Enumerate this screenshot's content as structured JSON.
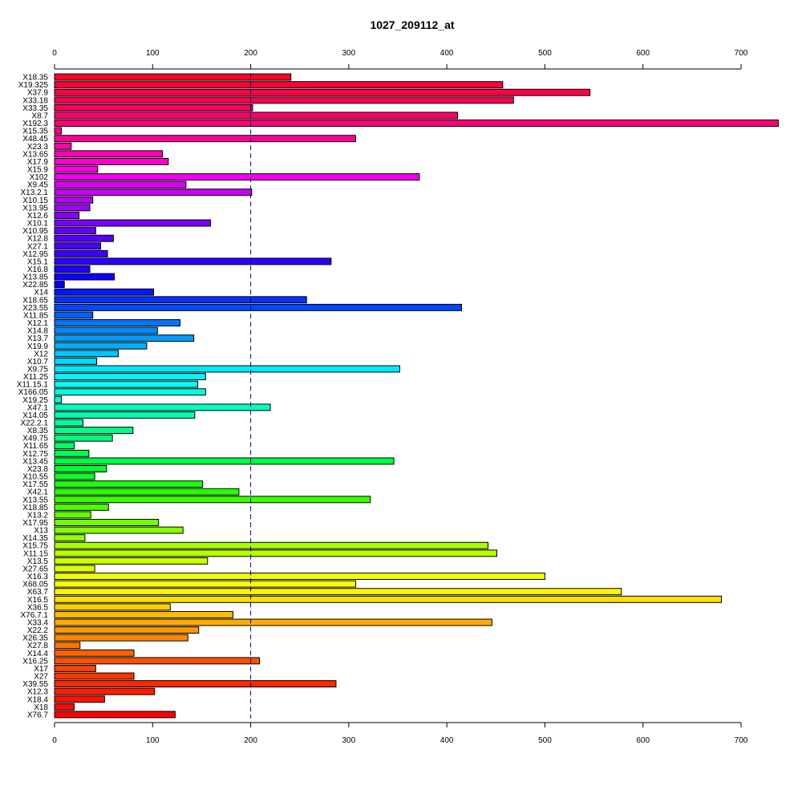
{
  "chart_data": {
    "type": "bar",
    "orientation": "horizontal",
    "title": "1027_209112_at",
    "xlabel": "",
    "ylabel": "",
    "xlim": [
      0,
      700
    ],
    "xticks": [
      0,
      100,
      200,
      300,
      400,
      500,
      600,
      700
    ],
    "reference_line": 200,
    "categories": [
      "X18.35",
      "X19.325",
      "X37.9",
      "X33.18",
      "X33.35",
      "X8.7",
      "X192.3",
      "X15.35",
      "X48.45",
      "X23.3",
      "X13.65",
      "X17.9",
      "X15.9",
      "X102",
      "X9.45",
      "X13.2.1",
      "X10.15",
      "X13.95",
      "X12.6",
      "X10.1",
      "X10.95",
      "X12.8",
      "X27.1",
      "X12.95",
      "X15.1",
      "X16.8",
      "X13.85",
      "X22.85",
      "X14",
      "X18.65",
      "X23.55",
      "X11.85",
      "X12.1",
      "X14.8",
      "X13.7",
      "X19.9",
      "X12",
      "X10.7",
      "X9.75",
      "X11.25",
      "X11.15.1",
      "X166.05",
      "X19.25",
      "X47.1",
      "X14.05",
      "X22.2.1",
      "X8.35",
      "X49.75",
      "X11.65",
      "X12.75",
      "X13.45",
      "X23.8",
      "X10.55",
      "X17.55",
      "X42.1",
      "X13.55",
      "X18.85",
      "X13.2",
      "X17.95",
      "X13",
      "X14.35",
      "X15.75",
      "X11.15",
      "X13.5",
      "X27.65",
      "X16.3",
      "X68.05",
      "X63.7",
      "X16.5",
      "X36.5",
      "X76.7.1",
      "X33.4",
      "X22.2",
      "X26.35",
      "X27.8",
      "X14.4",
      "X16.25",
      "X17",
      "X27",
      "X39.55",
      "X12.3",
      "X18.4",
      "X18",
      "X76.7"
    ],
    "values": [
      241,
      457,
      546,
      468,
      202,
      411,
      738,
      7,
      307,
      17,
      110,
      116,
      44,
      372,
      134,
      201,
      39,
      36,
      25,
      159,
      42,
      60,
      47,
      54,
      282,
      36,
      61,
      10,
      101,
      257,
      415,
      39,
      128,
      105,
      142,
      94,
      65,
      43,
      352,
      154,
      146,
      154,
      7,
      220,
      143,
      29,
      80,
      59,
      20,
      35,
      346,
      53,
      41,
      151,
      188,
      322,
      55,
      37,
      106,
      131,
      31,
      442,
      451,
      156,
      41,
      500,
      307,
      578,
      680,
      118,
      182,
      446,
      147,
      136,
      26,
      81,
      209,
      42,
      81,
      287,
      102,
      51,
      20,
      123
    ],
    "colors": [
      "#ff0026",
      "#ff0036",
      "#ff0044",
      "#ff0050",
      "#ff005c",
      "#ff0068",
      "#ff0076",
      "#ff0086",
      "#ff0096",
      "#ff00a8",
      "#ff00ba",
      "#ff00cc",
      "#ff00de",
      "#f000f0",
      "#dc00f2",
      "#c800f4",
      "#b400f6",
      "#a000f8",
      "#8c00fa",
      "#7a00fc",
      "#6800fe",
      "#5600ff",
      "#4800ff",
      "#3a00ff",
      "#2c00ff",
      "#1e00ff",
      "#1000ff",
      "#0400ff",
      "#0018ff",
      "#0030ff",
      "#0048ff",
      "#0060ff",
      "#0074ff",
      "#0088ff",
      "#009cff",
      "#00b0ff",
      "#00c4ff",
      "#00d8ff",
      "#00eaff",
      "#00f6ff",
      "#00fff0",
      "#00ffe0",
      "#00ffd0",
      "#00ffc0",
      "#00ffae",
      "#00ff9c",
      "#00ff8a",
      "#00ff78",
      "#00ff66",
      "#00ff54",
      "#00ff42",
      "#00ff30",
      "#0cff20",
      "#1aff10",
      "#28ff00",
      "#3aff00",
      "#4cff00",
      "#5eff00",
      "#70ff00",
      "#82ff00",
      "#94ff00",
      "#a6ff00",
      "#b8ff00",
      "#caff00",
      "#dcff00",
      "#eeff00",
      "#faff00",
      "#fff200",
      "#ffe000",
      "#ffce00",
      "#ffbc00",
      "#ffaa00",
      "#ff9800",
      "#ff8600",
      "#ff7400",
      "#ff6200",
      "#ff5000",
      "#ff4200",
      "#ff3400",
      "#ff2800",
      "#ff1c00",
      "#ff1000",
      "#ff0a00",
      "#ff0000"
    ],
    "grid": false,
    "legend": "none"
  }
}
